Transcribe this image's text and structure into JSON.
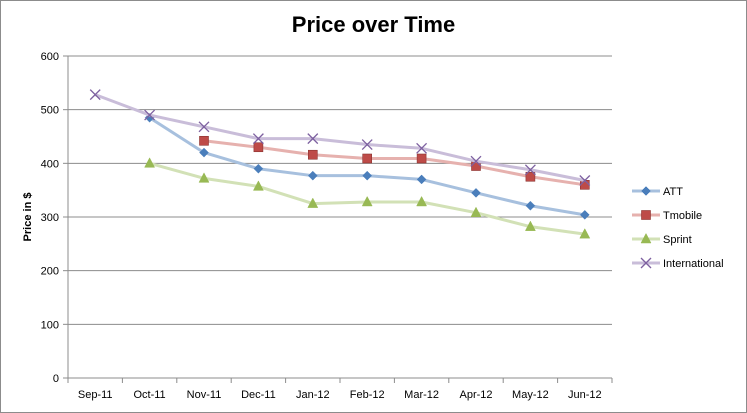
{
  "chart_data": {
    "type": "line",
    "title": "Price over Time",
    "xlabel": "",
    "ylabel": "Price in $",
    "ylim": [
      0,
      600
    ],
    "yticks": [
      0,
      100,
      200,
      300,
      400,
      500,
      600
    ],
    "grid": true,
    "legend": "right",
    "categories": [
      "Sep-11",
      "Oct-11",
      "Nov-11",
      "Dec-11",
      "Jan-12",
      "Feb-12",
      "Mar-12",
      "Apr-12",
      "May-12",
      "Jun-12"
    ],
    "series": [
      {
        "name": "ATT",
        "marker": "diamond",
        "color": "#4a7ebb",
        "line_color": "#a7c0de",
        "values": [
          null,
          485,
          420,
          390,
          377,
          377,
          370,
          345,
          321,
          304
        ]
      },
      {
        "name": "Tmobile",
        "marker": "square",
        "color": "#be4b48",
        "line_color": "#e6b1ae",
        "values": [
          null,
          null,
          442,
          430,
          416,
          409,
          409,
          395,
          375,
          360
        ]
      },
      {
        "name": "Sprint",
        "marker": "triangle",
        "color": "#98b954",
        "line_color": "#d2e1b6",
        "values": [
          null,
          400,
          372,
          357,
          325,
          328,
          328,
          308,
          282,
          268
        ]
      },
      {
        "name": "International",
        "marker": "x",
        "color": "#7d60a0",
        "line_color": "#c9bdd9",
        "values": [
          528,
          490,
          468,
          446,
          446,
          435,
          428,
          404,
          388,
          368
        ]
      }
    ]
  }
}
